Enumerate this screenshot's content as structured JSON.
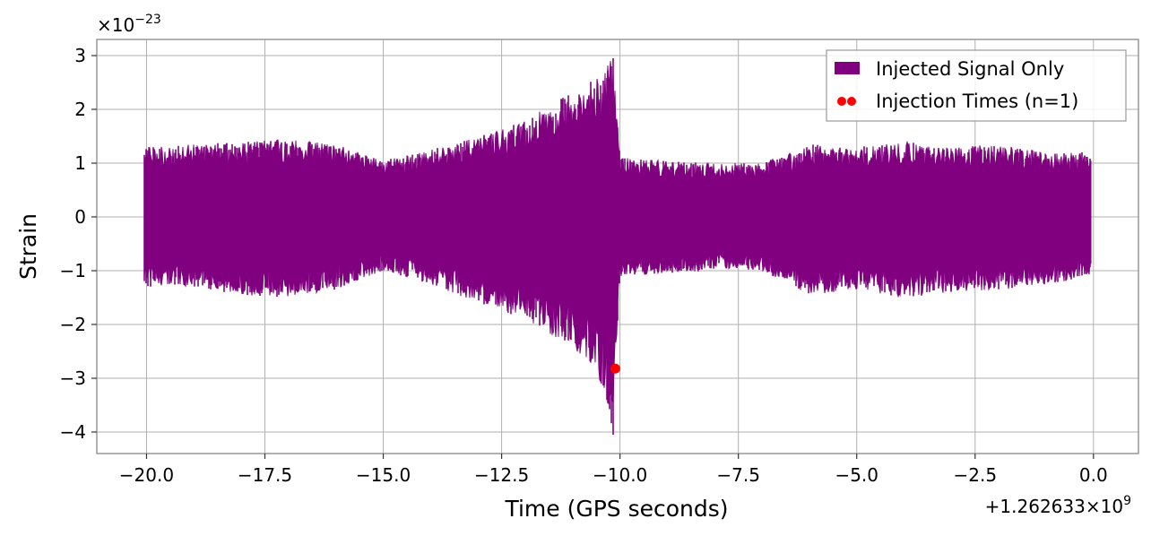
{
  "chart_data": {
    "type": "line",
    "xlabel": "Time (GPS seconds)",
    "ylabel": "Strain",
    "xlim": [
      -21.05,
      0.95
    ],
    "ylim": [
      -4.4,
      3.3
    ],
    "x_ticks": [
      -20.0,
      -17.5,
      -15.0,
      -12.5,
      -10.0,
      -7.5,
      -5.0,
      -2.5,
      0.0
    ],
    "x_tick_labels": [
      "−20.0",
      "−17.5",
      "−15.0",
      "−12.5",
      "−10.0",
      "−7.5",
      "−5.0",
      "−2.5",
      "0.0"
    ],
    "y_ticks": [
      3,
      2,
      1,
      0,
      -1,
      -2,
      -3,
      -4
    ],
    "y_tick_labels": [
      "3",
      "2",
      "1",
      "0",
      "−1",
      "−2",
      "−3",
      "−4"
    ],
    "y_scale_base": "×10",
    "y_scale_exp": "−23",
    "x_offset_base": "+1.262633×10",
    "x_offset_exp": "9",
    "grid": true,
    "legend_position": "top-right",
    "series": [
      {
        "name": "Injected Signal Only",
        "color": "#800080",
        "x_range": [
          -20.05,
          -0.05
        ],
        "envelope": [
          {
            "x": -20.05,
            "upper": 1.3,
            "lower": -1.3
          },
          {
            "x": -19.0,
            "upper": 1.35,
            "lower": -1.3
          },
          {
            "x": -18.0,
            "upper": 1.4,
            "lower": -1.45
          },
          {
            "x": -17.0,
            "upper": 1.45,
            "lower": -1.5
          },
          {
            "x": -16.0,
            "upper": 1.35,
            "lower": -1.35
          },
          {
            "x": -15.0,
            "upper": 1.05,
            "lower": -1.0
          },
          {
            "x": -14.0,
            "upper": 1.25,
            "lower": -1.25
          },
          {
            "x": -13.0,
            "upper": 1.5,
            "lower": -1.6
          },
          {
            "x": -12.0,
            "upper": 1.8,
            "lower": -1.9
          },
          {
            "x": -11.5,
            "upper": 2.1,
            "lower": -2.2
          },
          {
            "x": -11.0,
            "upper": 2.3,
            "lower": -2.45
          },
          {
            "x": -10.5,
            "upper": 2.6,
            "lower": -2.8
          },
          {
            "x": -10.15,
            "upper": 2.95,
            "lower": -4.05
          },
          {
            "x": -10.0,
            "upper": 1.1,
            "lower": -1.1
          },
          {
            "x": -9.0,
            "upper": 1.05,
            "lower": -1.05
          },
          {
            "x": -8.0,
            "upper": 1.0,
            "lower": -1.0
          },
          {
            "x": -7.0,
            "upper": 1.0,
            "lower": -1.0
          },
          {
            "x": -6.0,
            "upper": 1.35,
            "lower": -1.45
          },
          {
            "x": -5.0,
            "upper": 1.3,
            "lower": -1.35
          },
          {
            "x": -4.0,
            "upper": 1.4,
            "lower": -1.5
          },
          {
            "x": -3.0,
            "upper": 1.3,
            "lower": -1.4
          },
          {
            "x": -2.0,
            "upper": 1.35,
            "lower": -1.35
          },
          {
            "x": -1.0,
            "upper": 1.2,
            "lower": -1.3
          },
          {
            "x": -0.05,
            "upper": 1.2,
            "lower": -1.1
          }
        ]
      },
      {
        "name": "Injection Times (n=1)",
        "type": "scatter",
        "color": "#ff0000",
        "points": [
          {
            "x": -10.1,
            "y": -2.82
          }
        ]
      }
    ]
  }
}
